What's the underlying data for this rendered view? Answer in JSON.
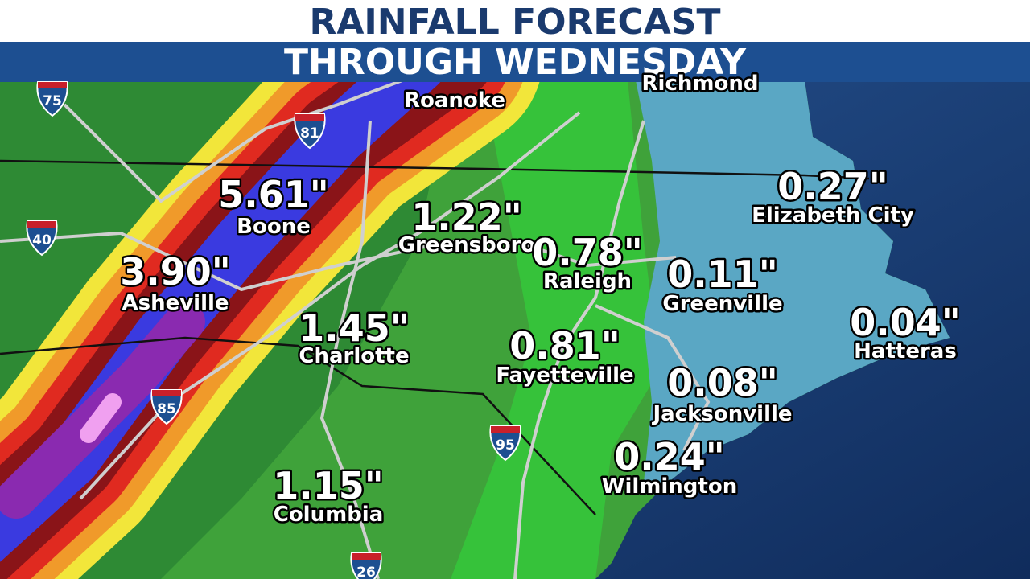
{
  "header": {
    "title": "RAINFALL FORECAST",
    "subtitle": "THROUGH WEDNESDAY"
  },
  "places": [
    {
      "name": "Roanoke"
    },
    {
      "name": "Richmond"
    }
  ],
  "cities": [
    {
      "name": "Boone",
      "amount": "5.61\""
    },
    {
      "name": "Asheville",
      "amount": "3.90\""
    },
    {
      "name": "Greensboro",
      "amount": "1.22\""
    },
    {
      "name": "Raleigh",
      "amount": "0.78\""
    },
    {
      "name": "Charlotte",
      "amount": "1.45\""
    },
    {
      "name": "Fayetteville",
      "amount": "0.81\""
    },
    {
      "name": "Elizabeth City",
      "amount": "0.27\""
    },
    {
      "name": "Greenville",
      "amount": "0.11\""
    },
    {
      "name": "Hatteras",
      "amount": "0.04\""
    },
    {
      "name": "Jacksonville",
      "amount": "0.08\""
    },
    {
      "name": "Wilmington",
      "amount": "0.24\""
    },
    {
      "name": "Columbia",
      "amount": "1.15\""
    }
  ],
  "interstates": [
    "75",
    "81",
    "40",
    "85",
    "95",
    "26"
  ]
}
